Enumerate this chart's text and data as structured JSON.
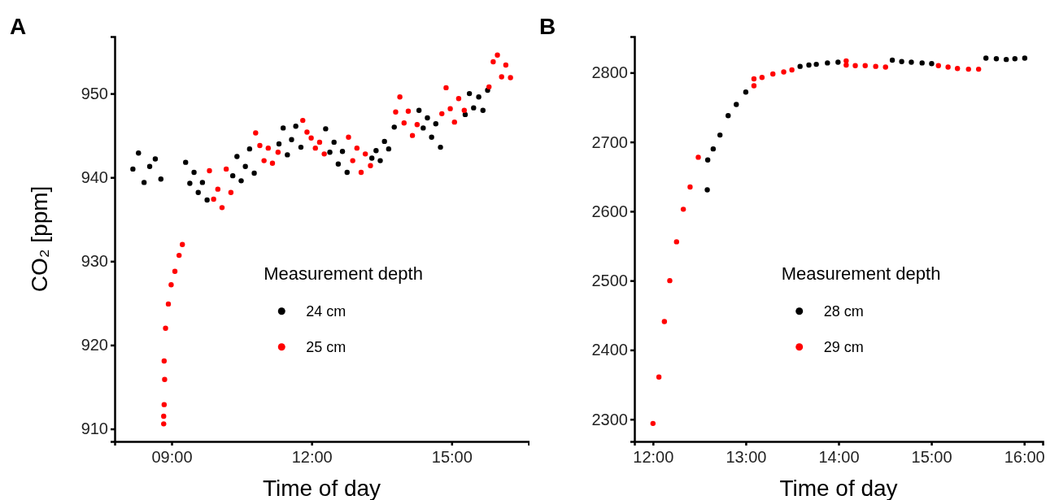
{
  "chart_data": [
    {
      "type": "scatter",
      "title": "A",
      "xlabel": "Time of day",
      "ylabel": "CO₂  [ppm]",
      "legend_title": "Measurement depth",
      "legend": "bottom right",
      "marker": "circle",
      "grid": false,
      "xlim": [
        7.78,
        16.65
      ],
      "xticks": [
        {
          "value": 9,
          "label": "09:00"
        },
        {
          "value": 12,
          "label": "12:00"
        },
        {
          "value": 15,
          "label": "15:00"
        }
      ],
      "ylim": [
        908.5,
        956.8
      ],
      "yticks": [
        910,
        920,
        930,
        940,
        950
      ],
      "series": [
        {
          "name": "24 cm",
          "color": "#000000",
          "x": [
            8.17,
            8.29,
            8.41,
            8.53,
            8.65,
            8.77,
            9.3,
            9.39,
            9.48,
            9.57,
            9.66,
            9.76,
            10.31,
            10.4,
            10.49,
            10.58,
            10.67,
            10.77,
            11.3,
            11.39,
            11.48,
            11.57,
            11.66,
            11.77,
            12.3,
            12.39,
            12.48,
            12.57,
            12.66,
            12.76,
            13.29,
            13.38,
            13.47,
            13.56,
            13.65,
            13.77,
            14.3,
            14.39,
            14.48,
            14.57,
            14.66,
            14.76,
            15.29,
            15.38,
            15.47,
            15.58,
            15.67,
            15.77
          ],
          "values": [
            941.0,
            942.9,
            939.4,
            941.3,
            942.2,
            939.8,
            941.8,
            939.3,
            940.6,
            938.2,
            939.4,
            937.3,
            940.2,
            942.5,
            939.6,
            941.3,
            943.4,
            940.5,
            944.0,
            945.9,
            942.7,
            944.5,
            946.1,
            943.6,
            945.8,
            943.0,
            944.2,
            941.6,
            943.1,
            940.6,
            942.3,
            943.2,
            942.0,
            944.3,
            943.4,
            946.0,
            948.0,
            945.9,
            947.1,
            944.8,
            946.4,
            943.6,
            947.5,
            950.0,
            948.3,
            949.6,
            948.0,
            950.4
          ]
        },
        {
          "name": "25 cm",
          "color": "#ff0000",
          "x": [
            8.83,
            8.83,
            8.84,
            8.85,
            8.84,
            8.87,
            8.93,
            8.99,
            9.07,
            9.16,
            9.23,
            9.81,
            9.9,
            9.99,
            10.08,
            10.17,
            10.27,
            10.8,
            10.89,
            10.98,
            11.07,
            11.16,
            11.28,
            11.81,
            11.9,
            11.99,
            12.08,
            12.17,
            12.27,
            12.79,
            12.88,
            12.97,
            13.06,
            13.15,
            13.26,
            13.8,
            13.89,
            13.98,
            14.07,
            14.16,
            14.26,
            14.79,
            14.88,
            14.97,
            15.06,
            15.15,
            15.27,
            15.8,
            15.89,
            15.98,
            16.07,
            16.16,
            16.26
          ],
          "values": [
            910.6,
            911.5,
            912.9,
            915.9,
            918.1,
            922.0,
            924.9,
            927.2,
            928.8,
            930.7,
            932.0,
            940.8,
            937.4,
            938.6,
            936.4,
            941.0,
            938.2,
            945.3,
            943.8,
            942.0,
            943.5,
            941.7,
            943.0,
            946.8,
            945.4,
            944.7,
            943.5,
            944.2,
            942.8,
            944.8,
            942.0,
            943.5,
            940.6,
            942.8,
            941.4,
            947.8,
            949.6,
            946.5,
            947.9,
            945.0,
            946.3,
            947.6,
            950.7,
            948.2,
            946.6,
            949.4,
            948.0,
            950.8,
            953.8,
            954.6,
            952.0,
            953.4,
            951.9
          ]
        }
      ]
    },
    {
      "type": "scatter",
      "title": "B",
      "xlabel": "Time of day",
      "legend_title": "Measurement depth",
      "legend": "bottom right",
      "marker": "circle",
      "grid": false,
      "xlim": [
        11.8,
        16.2
      ],
      "xticks": [
        {
          "value": 12,
          "label": "12:00"
        },
        {
          "value": 13,
          "label": "13:00"
        },
        {
          "value": 14,
          "label": "14:00"
        },
        {
          "value": 15,
          "label": "15:00"
        },
        {
          "value": 16,
          "label": "16:00"
        }
      ],
      "ylim": [
        2268,
        2852
      ],
      "yticks": [
        2300,
        2400,
        2500,
        2600,
        2700,
        2800
      ],
      "series": [
        {
          "name": "28 cm",
          "color": "#000000",
          "x": [
            12.585,
            12.59,
            12.649,
            12.722,
            12.81,
            12.898,
            13.0,
            13.585,
            13.68,
            13.76,
            13.88,
            13.994,
            14.579,
            14.68,
            14.784,
            14.9,
            15.003,
            15.588,
            15.7,
            15.807,
            15.9,
            16.006
          ],
          "values": [
            2631,
            2674,
            2690,
            2710,
            2738,
            2754,
            2772,
            2809,
            2811,
            2812,
            2814,
            2815,
            2818,
            2816,
            2815,
            2814,
            2813,
            2821,
            2820,
            2819,
            2820,
            2821
          ]
        },
        {
          "name": "29 cm",
          "color": "#ff0000",
          "x": [
            12.0,
            12.064,
            12.123,
            12.181,
            12.254,
            12.327,
            12.4,
            12.488,
            13.088,
            13.088,
            13.175,
            13.292,
            13.409,
            13.497,
            14.082,
            14.082,
            14.18,
            14.287,
            14.4,
            14.506,
            15.076,
            15.18,
            15.281,
            15.4,
            15.509
          ],
          "values": [
            2294,
            2361,
            2441,
            2500,
            2556,
            2603,
            2635,
            2678,
            2781,
            2791,
            2793,
            2798,
            2801,
            2804,
            2817,
            2811,
            2810,
            2810,
            2809,
            2808,
            2810,
            2808,
            2806,
            2805,
            2805
          ]
        }
      ]
    }
  ]
}
